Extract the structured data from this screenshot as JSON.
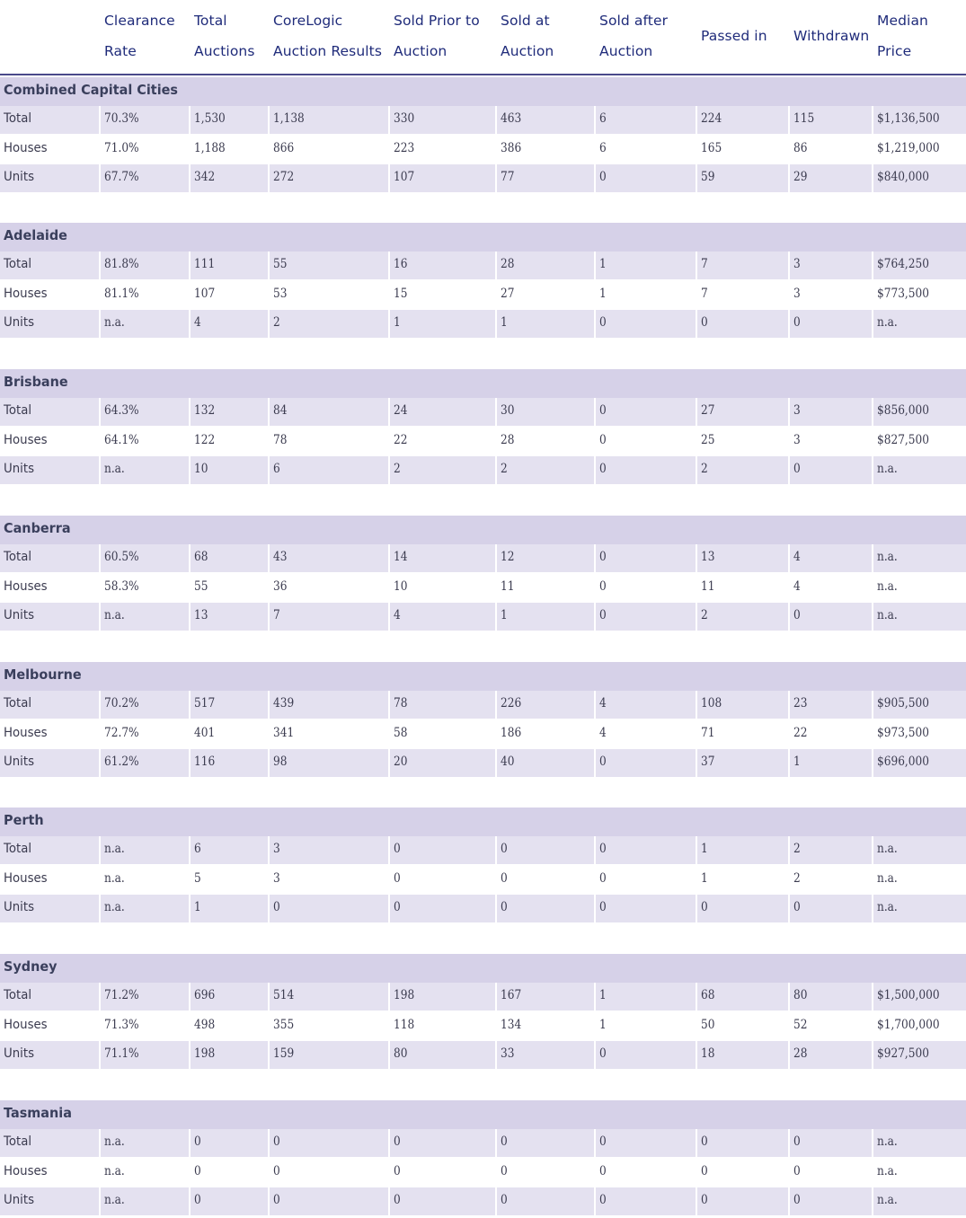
{
  "headers": [
    "Clearance\nRate",
    "Total\nAuctions",
    "CoreLogic\nAuction Results",
    "Sold Prior to\nAuction",
    "Sold at\nAuction",
    "Sold after\nAuction",
    "Passed in",
    "Withdrawn",
    "Median\nPrice"
  ],
  "sections": [
    {
      "name": "Combined Capital Cities",
      "rows": [
        [
          "Total",
          "70.3%",
          "1,530",
          "1,138",
          "330",
          "463",
          "6",
          "224",
          "115",
          "$1,136,500"
        ],
        [
          "Houses",
          "71.0%",
          "1,188",
          "866",
          "223",
          "386",
          "6",
          "165",
          "86",
          "$1,219,000"
        ],
        [
          "Units",
          "67.7%",
          "342",
          "272",
          "107",
          "77",
          "0",
          "59",
          "29",
          "$840,000"
        ]
      ]
    },
    {
      "name": "Adelaide",
      "rows": [
        [
          "Total",
          "81.8%",
          "111",
          "55",
          "16",
          "28",
          "1",
          "7",
          "3",
          "$764,250"
        ],
        [
          "Houses",
          "81.1%",
          "107",
          "53",
          "15",
          "27",
          "1",
          "7",
          "3",
          "$773,500"
        ],
        [
          "Units",
          "n.a.",
          "4",
          "2",
          "1",
          "1",
          "0",
          "0",
          "0",
          "n.a."
        ]
      ]
    },
    {
      "name": "Brisbane",
      "rows": [
        [
          "Total",
          "64.3%",
          "132",
          "84",
          "24",
          "30",
          "0",
          "27",
          "3",
          "$856,000"
        ],
        [
          "Houses",
          "64.1%",
          "122",
          "78",
          "22",
          "28",
          "0",
          "25",
          "3",
          "$827,500"
        ],
        [
          "Units",
          "n.a.",
          "10",
          "6",
          "2",
          "2",
          "0",
          "2",
          "0",
          "n.a."
        ]
      ]
    },
    {
      "name": "Canberra",
      "rows": [
        [
          "Total",
          "60.5%",
          "68",
          "43",
          "14",
          "12",
          "0",
          "13",
          "4",
          "n.a."
        ],
        [
          "Houses",
          "58.3%",
          "55",
          "36",
          "10",
          "11",
          "0",
          "11",
          "4",
          "n.a."
        ],
        [
          "Units",
          "n.a.",
          "13",
          "7",
          "4",
          "1",
          "0",
          "2",
          "0",
          "n.a."
        ]
      ]
    },
    {
      "name": "Melbourne",
      "rows": [
        [
          "Total",
          "70.2%",
          "517",
          "439",
          "78",
          "226",
          "4",
          "108",
          "23",
          "$905,500"
        ],
        [
          "Houses",
          "72.7%",
          "401",
          "341",
          "58",
          "186",
          "4",
          "71",
          "22",
          "$973,500"
        ],
        [
          "Units",
          "61.2%",
          "116",
          "98",
          "20",
          "40",
          "0",
          "37",
          "1",
          "$696,000"
        ]
      ]
    },
    {
      "name": "Perth",
      "rows": [
        [
          "Total",
          "n.a.",
          "6",
          "3",
          "0",
          "0",
          "0",
          "1",
          "2",
          "n.a."
        ],
        [
          "Houses",
          "n.a.",
          "5",
          "3",
          "0",
          "0",
          "0",
          "1",
          "2",
          "n.a."
        ],
        [
          "Units",
          "n.a.",
          "1",
          "0",
          "0",
          "0",
          "0",
          "0",
          "0",
          "n.a."
        ]
      ]
    },
    {
      "name": "Sydney",
      "rows": [
        [
          "Total",
          "71.2%",
          "696",
          "514",
          "198",
          "167",
          "1",
          "68",
          "80",
          "$1,500,000"
        ],
        [
          "Houses",
          "71.3%",
          "498",
          "355",
          "118",
          "134",
          "1",
          "50",
          "52",
          "$1,700,000"
        ],
        [
          "Units",
          "71.1%",
          "198",
          "159",
          "80",
          "33",
          "0",
          "18",
          "28",
          "$927,500"
        ]
      ]
    },
    {
      "name": "Tasmania",
      "rows": [
        [
          "Total",
          "n.a.",
          "0",
          "0",
          "0",
          "0",
          "0",
          "0",
          "0",
          "n.a."
        ],
        [
          "Houses",
          "n.a.",
          "0",
          "0",
          "0",
          "0",
          "0",
          "0",
          "0",
          "n.a."
        ],
        [
          "Units",
          "n.a.",
          "0",
          "0",
          "0",
          "0",
          "0",
          "0",
          "0",
          "n.a."
        ]
      ]
    }
  ]
}
